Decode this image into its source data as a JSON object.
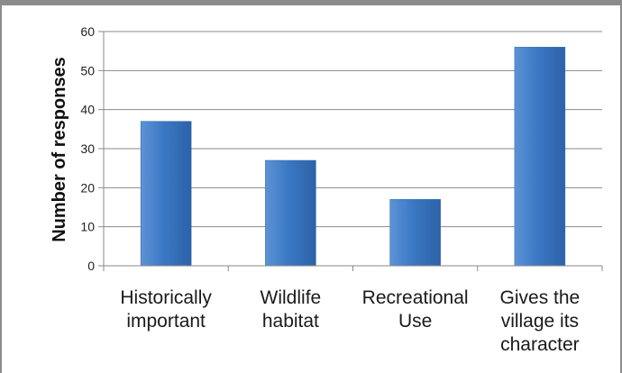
{
  "chart_data": {
    "type": "bar",
    "title": "",
    "xlabel": "",
    "ylabel": "Number of responses",
    "categories": [
      [
        "Historically",
        "important"
      ],
      [
        "Wildlife",
        "habitat"
      ],
      [
        "Recreational",
        "Use"
      ],
      [
        "Gives the",
        "village its",
        "character"
      ]
    ],
    "values": [
      37,
      27,
      17,
      56
    ],
    "ylim": [
      0,
      60
    ],
    "yticks": [
      "0",
      "10",
      "20",
      "30",
      "40",
      "50",
      "60"
    ],
    "grid": true,
    "legend": "none",
    "bar_color": "#3b78c4"
  }
}
